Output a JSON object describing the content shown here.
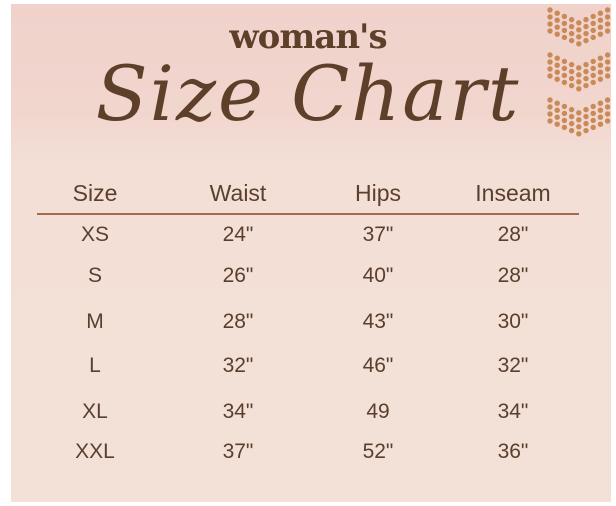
{
  "title": {
    "line1": "woman's",
    "line2": "Size Chart"
  },
  "colors": {
    "text": "#5a3f2e",
    "accent_dots": "#c98a57",
    "rule": "#a86a4f",
    "background": "#f3e0d7"
  },
  "table": {
    "headers": [
      "Size",
      "Waist",
      "Hips",
      "Inseam"
    ],
    "rows": [
      [
        "XS",
        "24\"",
        "37\"",
        "28\""
      ],
      [
        "S",
        "26\"",
        "40\"",
        "28\""
      ],
      [
        "M",
        "28\"",
        "43\"",
        "30\""
      ],
      [
        "L",
        "32\"",
        "46\"",
        "32\""
      ],
      [
        "XL",
        "34\"",
        "49",
        "34\""
      ],
      [
        "XXL",
        "37\"",
        "52\"",
        "36\""
      ]
    ]
  }
}
